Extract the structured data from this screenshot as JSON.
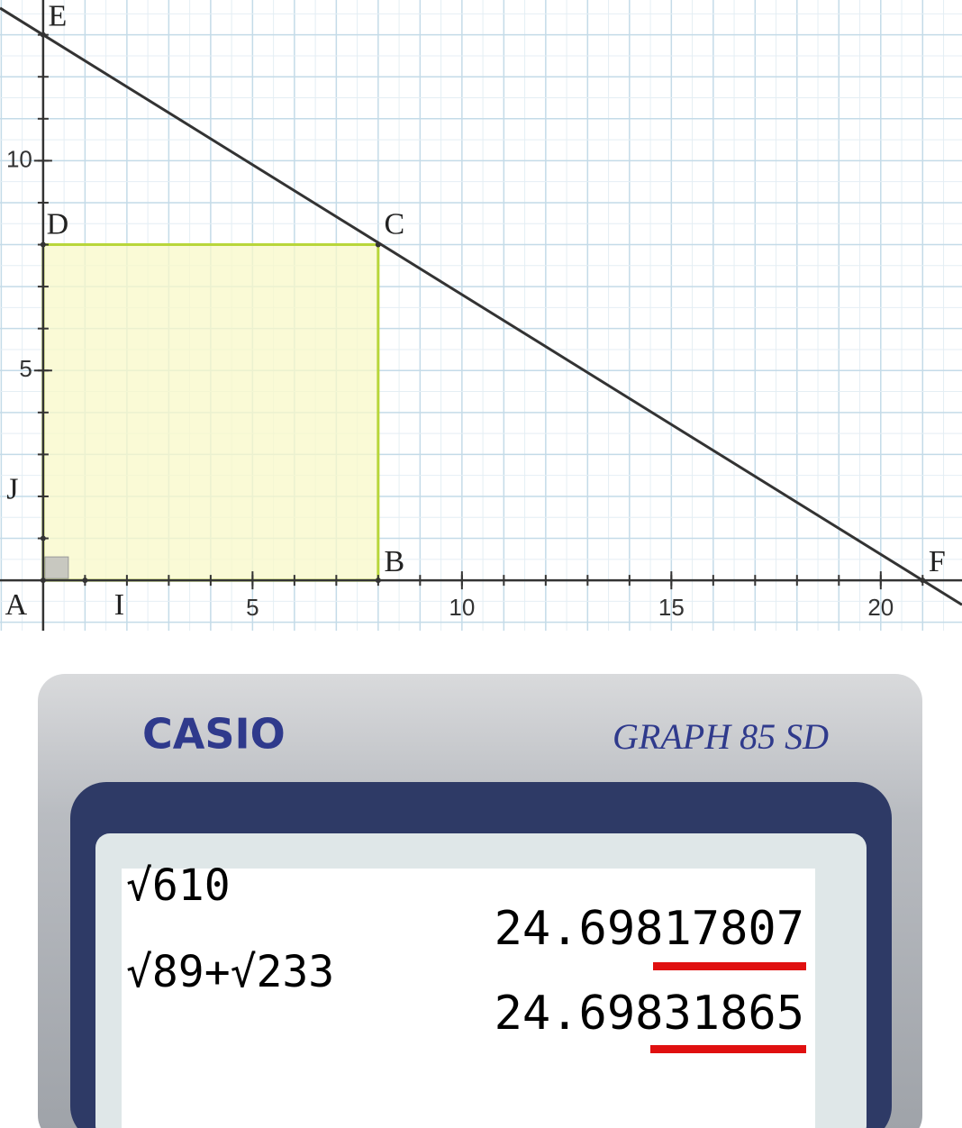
{
  "graph": {
    "xlim": [
      -1.03,
      21.94
    ],
    "ylim": [
      -1.2,
      13.83
    ],
    "xticks": [
      5,
      10,
      15,
      20
    ],
    "yticks": [
      5,
      10
    ],
    "points": [
      {
        "label": "A",
        "x": 0,
        "y": 0
      },
      {
        "label": "B",
        "x": 8,
        "y": 0
      },
      {
        "label": "C",
        "x": 8,
        "y": 8
      },
      {
        "label": "D",
        "x": 0,
        "y": 8
      },
      {
        "label": "E",
        "x": 0,
        "y": 13
      },
      {
        "label": "F",
        "x": 21,
        "y": 0
      },
      {
        "label": "I",
        "x": 1,
        "y": 0
      },
      {
        "label": "J",
        "x": 0,
        "y": 1
      }
    ]
  },
  "calculator": {
    "brand": "CASIO",
    "model": "GRAPH 85 SD",
    "lines": [
      {
        "expression": "√610",
        "result": "24.69817807"
      },
      {
        "expression": "√89+√233",
        "result": "24.69831865"
      }
    ]
  }
}
